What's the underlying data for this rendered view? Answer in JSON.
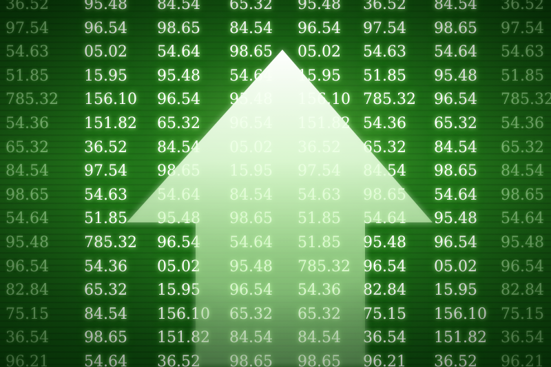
{
  "columns": [
    [
      "36.52",
      "97.54",
      "54.63",
      "51.85",
      "785.32",
      "54.36",
      "65.32",
      "84.54",
      "98.65",
      "54.64",
      "95.48",
      "96.54",
      "82.84",
      "75.15",
      "36.54",
      "96.21"
    ],
    [
      "95.48",
      "96.54",
      "05.02",
      "15.95",
      "156.10",
      "151.82",
      "36.52",
      "97.54",
      "54.63",
      "51.85",
      "785.32",
      "54.36",
      "65.32",
      "84.54",
      "98.65",
      "54.64"
    ],
    [
      "84.54",
      "98.65",
      "54.64",
      "95.48",
      "96.54",
      "65.32",
      "84.54",
      "98.65",
      "54.64",
      "95.48",
      "96.54",
      "05.02",
      "15.95",
      "156.10",
      "151.82",
      "36.52"
    ],
    [
      "65.32",
      "84.54",
      "98.65",
      "54.64",
      "95.48",
      "96.54",
      "05.02",
      "15.95",
      "84.54",
      "98.65",
      "54.64",
      "95.48",
      "96.54",
      "65.32",
      "84.54",
      "98.65"
    ],
    [
      "95.48",
      "96.54",
      "05.02",
      "15.95",
      "156.10",
      "151.82",
      "36.52",
      "97.54",
      "54.63",
      "51.85",
      "51.85",
      "785.32",
      "54.36",
      "65.32",
      "84.54",
      "98.65"
    ],
    [
      "36.52",
      "97.54",
      "54.63",
      "51.85",
      "785.32",
      "54.36",
      "65.32",
      "84.54",
      "98.65",
      "54.64",
      "95.48",
      "96.54",
      "82.84",
      "75.15",
      "36.54",
      "96.21"
    ],
    [
      "84.54",
      "98.65",
      "54.64",
      "95.48",
      "96.54",
      "65.32",
      "84.54",
      "98.65",
      "54.64",
      "95.48",
      "96.54",
      "05.02",
      "15.95",
      "156.10",
      "151.82",
      "36.52"
    ],
    [
      "36.52",
      "97.54",
      "54.63",
      "51.85",
      "785.32",
      "54.36",
      "65.32",
      "84.54",
      "98.65",
      "54.64",
      "95.48",
      "96.54",
      "82.84",
      "75.15",
      "36.54",
      "96.21"
    ]
  ],
  "arrow_icon": "up-arrow-icon",
  "colors": {
    "background": "#1f6b18",
    "text": "#ffffff",
    "glow": "#b4ff96"
  }
}
